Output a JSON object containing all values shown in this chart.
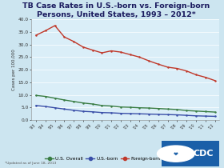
{
  "title_line1": "TB Case Rates in U.S.-born vs. Foreign-born",
  "title_line2": "Persons, United States, 1993 – 2012*",
  "years": [
    1993,
    1994,
    1995,
    1996,
    1997,
    1998,
    1999,
    2000,
    2001,
    2002,
    2003,
    2004,
    2005,
    2006,
    2007,
    2008,
    2009,
    2010,
    2011,
    2012
  ],
  "us_overall": [
    9.8,
    9.4,
    8.7,
    8.0,
    7.4,
    6.8,
    6.4,
    5.8,
    5.6,
    5.2,
    5.1,
    4.9,
    4.8,
    4.6,
    4.4,
    4.2,
    3.8,
    3.6,
    3.4,
    3.2
  ],
  "us_born": [
    5.8,
    5.4,
    4.9,
    4.4,
    3.9,
    3.5,
    3.3,
    3.0,
    2.9,
    2.7,
    2.6,
    2.5,
    2.4,
    2.3,
    2.2,
    2.1,
    1.9,
    1.7,
    1.6,
    1.5
  ],
  "foreign_born": [
    33.7,
    35.5,
    37.5,
    33.0,
    31.2,
    29.0,
    27.8,
    26.7,
    27.5,
    27.0,
    26.0,
    25.0,
    23.5,
    22.2,
    21.0,
    20.5,
    19.5,
    18.0,
    17.0,
    15.7
  ],
  "overall_color": "#3a7d44",
  "usborn_color": "#3a4fa8",
  "foreign_color": "#c0392b",
  "bg_color": "#cce5f0",
  "plot_bg": "#daeef8",
  "ylabel": "Cases per 100,000",
  "ylim": [
    0.0,
    40.0
  ],
  "yticks": [
    0.0,
    5.0,
    10.0,
    15.0,
    20.0,
    25.0,
    30.0,
    35.0,
    40.0
  ],
  "footnote": "*Updated as of June 18, 2013",
  "legend_labels": [
    "U.S. Overall",
    "U.S.-born",
    "Foreign-born"
  ],
  "cdc_blue": "#1a5fa8"
}
